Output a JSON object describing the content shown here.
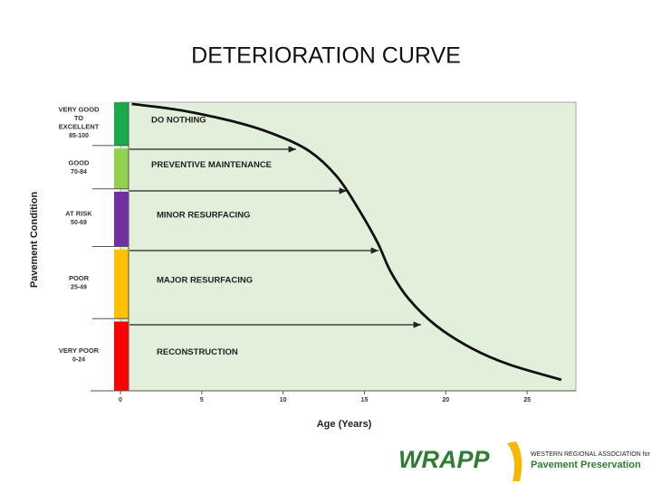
{
  "title": "DETERIORATION CURVE",
  "chart_data": {
    "type": "line",
    "y_label": "Pavement Condition",
    "x_label": "Age (Years)",
    "xlim": [
      0,
      28
    ],
    "xticks": [
      0,
      5,
      10,
      15,
      20,
      25
    ],
    "ylim": [
      0,
      100
    ],
    "x": [
      0.7,
      3.7,
      7.1,
      9.4,
      11.6,
      13.3,
      14.6,
      15.8,
      16.6,
      17.7,
      19.4,
      21.6,
      23.9,
      27.1
    ],
    "series": [
      {
        "color": "#111111",
        "values": [
          99.4,
          97.2,
          93.1,
          89.0,
          83.1,
          74.3,
          63.3,
          51.4,
          41.4,
          32.0,
          22.6,
          14.7,
          9.1,
          3.8
        ]
      }
    ],
    "bands": [
      {
        "label": [
          "VERY GOOD",
          "TO",
          "EXCELLENT"
        ],
        "range": "85-100",
        "low": 85,
        "high": 100,
        "color": "#1aa94b",
        "action": "DO NOTHING"
      },
      {
        "label": [
          "GOOD"
        ],
        "range": "70-84",
        "low": 70,
        "high": 84,
        "color": "#92d050",
        "action": "PREVENTIVE MAINTENANCE"
      },
      {
        "label": [
          "AT RISK"
        ],
        "range": "50-69",
        "low": 50,
        "high": 69,
        "color": "#7030a0",
        "action": "MINOR RESURFACING"
      },
      {
        "label": [
          "POOR"
        ],
        "range": "25-49",
        "low": 25,
        "high": 49,
        "color": "#ffc000",
        "action": "MAJOR RESURFACING"
      },
      {
        "label": [
          "VERY POOR"
        ],
        "range": "0-24",
        "low": 0,
        "high": 24,
        "color": "#ff0000",
        "action": "RECONSTRUCTION"
      }
    ]
  },
  "logo": {
    "name": "WRAPP",
    "org": "WESTERN REGIONAL ASSOCIATION for",
    "tagline": "Pavement Preservation"
  }
}
